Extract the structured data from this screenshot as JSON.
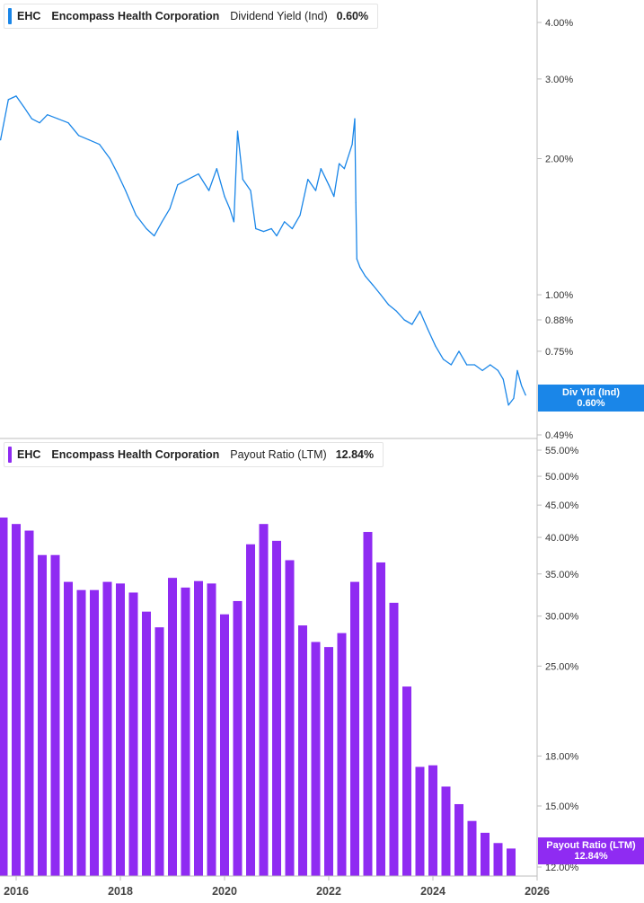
{
  "colors": {
    "yield_line": "#1a86e8",
    "payout_bar": "#8f2bf2",
    "grid": "#e8e8e8",
    "axis": "#bdbdbd"
  },
  "top_legend": {
    "ticker": "EHC",
    "company": "Encompass Health Corporation",
    "metric": "Dividend Yield (Ind)",
    "value": "0.60%"
  },
  "bottom_legend": {
    "ticker": "EHC",
    "company": "Encompass Health Corporation",
    "metric": "Payout Ratio (LTM)",
    "value": "12.84%"
  },
  "top_tag": {
    "line1": "Div Yld (Ind)",
    "line2": "0.60%"
  },
  "bottom_tag": {
    "line1": "Payout Ratio (LTM)",
    "line2": "12.84%"
  },
  "chart_data": [
    {
      "type": "line",
      "scale": "log",
      "series": [
        {
          "name": "Dividend Yield (Ind)",
          "x": [
            2015.7,
            2015.85,
            2016.0,
            2016.15,
            2016.3,
            2016.45,
            2016.6,
            2016.8,
            2017.0,
            2017.2,
            2017.4,
            2017.6,
            2017.8,
            2017.95,
            2018.1,
            2018.3,
            2018.5,
            2018.65,
            2018.8,
            2018.95,
            2019.1,
            2019.3,
            2019.5,
            2019.7,
            2019.85,
            2020.0,
            2020.1,
            2020.18,
            2020.25,
            2020.35,
            2020.5,
            2020.6,
            2020.75,
            2020.9,
            2021.0,
            2021.15,
            2021.3,
            2021.45,
            2021.6,
            2021.75,
            2021.85,
            2022.0,
            2022.1,
            2022.2,
            2022.3,
            2022.45,
            2022.5,
            2022.52,
            2022.54,
            2022.6,
            2022.7,
            2022.85,
            2023.0,
            2023.15,
            2023.3,
            2023.45,
            2023.6,
            2023.75,
            2023.9,
            2024.05,
            2024.2,
            2024.35,
            2024.5,
            2024.65,
            2024.8,
            2024.95,
            2025.1,
            2025.25,
            2025.35,
            2025.45,
            2025.55,
            2025.62,
            2025.7,
            2025.78
          ],
          "y": [
            2.2,
            2.7,
            2.75,
            2.6,
            2.45,
            2.4,
            2.5,
            2.45,
            2.4,
            2.25,
            2.2,
            2.15,
            2.0,
            1.85,
            1.7,
            1.5,
            1.4,
            1.35,
            1.45,
            1.55,
            1.75,
            1.8,
            1.85,
            1.7,
            1.9,
            1.65,
            1.55,
            1.45,
            2.3,
            1.8,
            1.7,
            1.4,
            1.38,
            1.4,
            1.35,
            1.45,
            1.4,
            1.5,
            1.8,
            1.7,
            1.9,
            1.75,
            1.65,
            1.95,
            1.9,
            2.15,
            2.45,
            1.6,
            1.2,
            1.15,
            1.1,
            1.05,
            1.0,
            0.95,
            0.92,
            0.88,
            0.86,
            0.92,
            0.84,
            0.77,
            0.72,
            0.7,
            0.75,
            0.7,
            0.7,
            0.68,
            0.7,
            0.68,
            0.65,
            0.57,
            0.59,
            0.68,
            0.63,
            0.6
          ]
        }
      ],
      "ylim": [
        0.49,
        4.3
      ],
      "yticks": [
        "4.00%",
        "3.00%",
        "2.00%",
        "1.00%",
        "0.88%",
        "0.75%",
        "0.49%"
      ],
      "ytick_values": [
        4.0,
        3.0,
        2.0,
        1.0,
        0.88,
        0.75,
        0.49
      ]
    },
    {
      "type": "bar",
      "scale": "log",
      "series": [
        {
          "name": "Payout Ratio (LTM)",
          "x": [
            2015.75,
            2016.0,
            2016.25,
            2016.5,
            2016.75,
            2017.0,
            2017.25,
            2017.5,
            2017.75,
            2018.0,
            2018.25,
            2018.5,
            2018.75,
            2019.0,
            2019.25,
            2019.5,
            2019.75,
            2020.0,
            2020.25,
            2020.5,
            2020.75,
            2021.0,
            2021.25,
            2021.5,
            2021.75,
            2022.0,
            2022.25,
            2022.5,
            2022.75,
            2023.0,
            2023.25,
            2023.5,
            2023.75,
            2024.0,
            2024.25,
            2024.5,
            2024.75,
            2025.0,
            2025.25,
            2025.5
          ],
          "values": [
            43.0,
            42.0,
            41.0,
            37.5,
            37.5,
            34.0,
            33.0,
            33.0,
            34.0,
            33.8,
            32.7,
            30.5,
            28.8,
            34.5,
            33.3,
            34.1,
            33.8,
            30.2,
            31.7,
            39.0,
            42.0,
            39.5,
            36.8,
            29.0,
            27.3,
            26.8,
            28.2,
            34.0,
            40.8,
            36.5,
            31.5,
            23.2,
            17.3,
            17.4,
            16.1,
            15.1,
            14.2,
            13.6,
            13.1,
            12.84
          ]
        }
      ],
      "ylim": [
        12.0,
        56.0
      ],
      "yticks": [
        "55.00%",
        "50.00%",
        "45.00%",
        "40.00%",
        "35.00%",
        "30.00%",
        "25.00%",
        "18.00%",
        "15.00%",
        "12.00%"
      ],
      "ytick_values": [
        55,
        50,
        45,
        40,
        35,
        30,
        25,
        18,
        15,
        12
      ]
    }
  ],
  "x_axis": {
    "ticks": [
      "2016",
      "2018",
      "2020",
      "2022",
      "2024",
      "2026"
    ],
    "tick_values": [
      2016,
      2018,
      2020,
      2022,
      2024,
      2026
    ]
  }
}
